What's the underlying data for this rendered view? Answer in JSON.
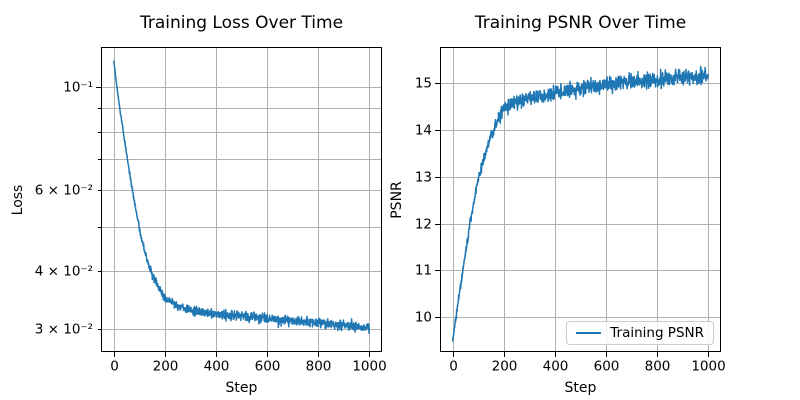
{
  "figure": {
    "background": "#ffffff",
    "line_color": "#1f77b4",
    "grid_color": "#b0b0b0",
    "spine_color": "#000000",
    "text_color": "#000000"
  },
  "chart_data": [
    {
      "type": "line",
      "title": "Training Loss Over Time",
      "xlabel": "Step",
      "ylabel": "Loss",
      "yscale": "log",
      "grid": true,
      "legend": null,
      "xlim": [
        -50,
        1050
      ],
      "ylim": [
        0.0268,
        0.122
      ],
      "xticks": {
        "values": [
          0,
          200,
          400,
          600,
          800,
          1000
        ],
        "labels": [
          "0",
          "200",
          "400",
          "600",
          "800",
          "1000"
        ]
      },
      "yticks": [
        {
          "v": 0.1,
          "label": "10⁻¹",
          "major": true
        },
        {
          "v": 0.09,
          "label": "",
          "major": false
        },
        {
          "v": 0.08,
          "label": "",
          "major": false
        },
        {
          "v": 0.07,
          "label": "",
          "major": false
        },
        {
          "v": 0.06,
          "label": "6 × 10⁻²",
          "major": false
        },
        {
          "v": 0.05,
          "label": "",
          "major": false
        },
        {
          "v": 0.04,
          "label": "4 × 10⁻²",
          "major": false
        },
        {
          "v": 0.03,
          "label": "3 × 10⁻²",
          "major": false
        }
      ],
      "series": [
        {
          "name": "Training Loss",
          "color": "#1f77b4",
          "interp": "log",
          "n_points": 1001,
          "x": [
            0,
            15,
            30,
            45,
            60,
            75,
            90,
            105,
            120,
            135,
            150,
            165,
            180,
            200,
            250,
            300,
            350,
            400,
            450,
            500,
            550,
            600,
            650,
            700,
            750,
            800,
            850,
            900,
            950,
            1000
          ],
          "y": [
            0.114,
            0.097,
            0.085,
            0.075,
            0.066,
            0.059,
            0.053,
            0.048,
            0.0445,
            0.0415,
            0.0395,
            0.038,
            0.0368,
            0.035,
            0.0337,
            0.033,
            0.0327,
            0.0324,
            0.0322,
            0.032,
            0.0318,
            0.0316,
            0.0314,
            0.0313,
            0.0311,
            0.031,
            0.0308,
            0.0306,
            0.0304,
            0.0303
          ],
          "noise": {
            "mode": "rel",
            "std": 0.012,
            "base": 0.3,
            "ramp_until": 220
          }
        }
      ]
    },
    {
      "type": "line",
      "title": "Training PSNR Over Time",
      "xlabel": "Step",
      "ylabel": "PSNR",
      "yscale": "linear",
      "grid": true,
      "legend": {
        "label": "Training PSNR",
        "loc": "lower right"
      },
      "xlim": [
        -50,
        1050
      ],
      "ylim": [
        9.25,
        15.78
      ],
      "xticks": {
        "values": [
          0,
          200,
          400,
          600,
          800,
          1000
        ],
        "labels": [
          "0",
          "200",
          "400",
          "600",
          "800",
          "1000"
        ]
      },
      "yticks": [
        {
          "v": 10,
          "label": "10",
          "major": true
        },
        {
          "v": 11,
          "label": "11",
          "major": true
        },
        {
          "v": 12,
          "label": "12",
          "major": true
        },
        {
          "v": 13,
          "label": "13",
          "major": true
        },
        {
          "v": 14,
          "label": "14",
          "major": true
        },
        {
          "v": 15,
          "label": "15",
          "major": true
        }
      ],
      "series": [
        {
          "name": "Training PSNR",
          "color": "#1f77b4",
          "interp": "linear",
          "n_points": 1001,
          "x": [
            0,
            10,
            20,
            30,
            40,
            50,
            60,
            70,
            80,
            90,
            100,
            110,
            120,
            130,
            140,
            150,
            160,
            170,
            180,
            190,
            200,
            220,
            240,
            260,
            280,
            300,
            350,
            400,
            450,
            500,
            550,
            600,
            650,
            700,
            750,
            800,
            850,
            900,
            950,
            1000
          ],
          "y": [
            9.5,
            9.9,
            10.3,
            10.65,
            11.0,
            11.35,
            11.75,
            12.1,
            12.4,
            12.7,
            12.95,
            13.15,
            13.35,
            13.55,
            13.72,
            13.88,
            14.0,
            14.12,
            14.25,
            14.37,
            14.45,
            14.52,
            14.58,
            14.62,
            14.65,
            14.68,
            14.73,
            14.8,
            14.85,
            14.9,
            14.93,
            14.98,
            15.01,
            15.04,
            15.06,
            15.08,
            15.11,
            15.13,
            15.15,
            15.18
          ],
          "noise": {
            "mode": "abs",
            "std": 0.08,
            "base": 0.4,
            "ramp_until": 220
          }
        }
      ]
    }
  ]
}
